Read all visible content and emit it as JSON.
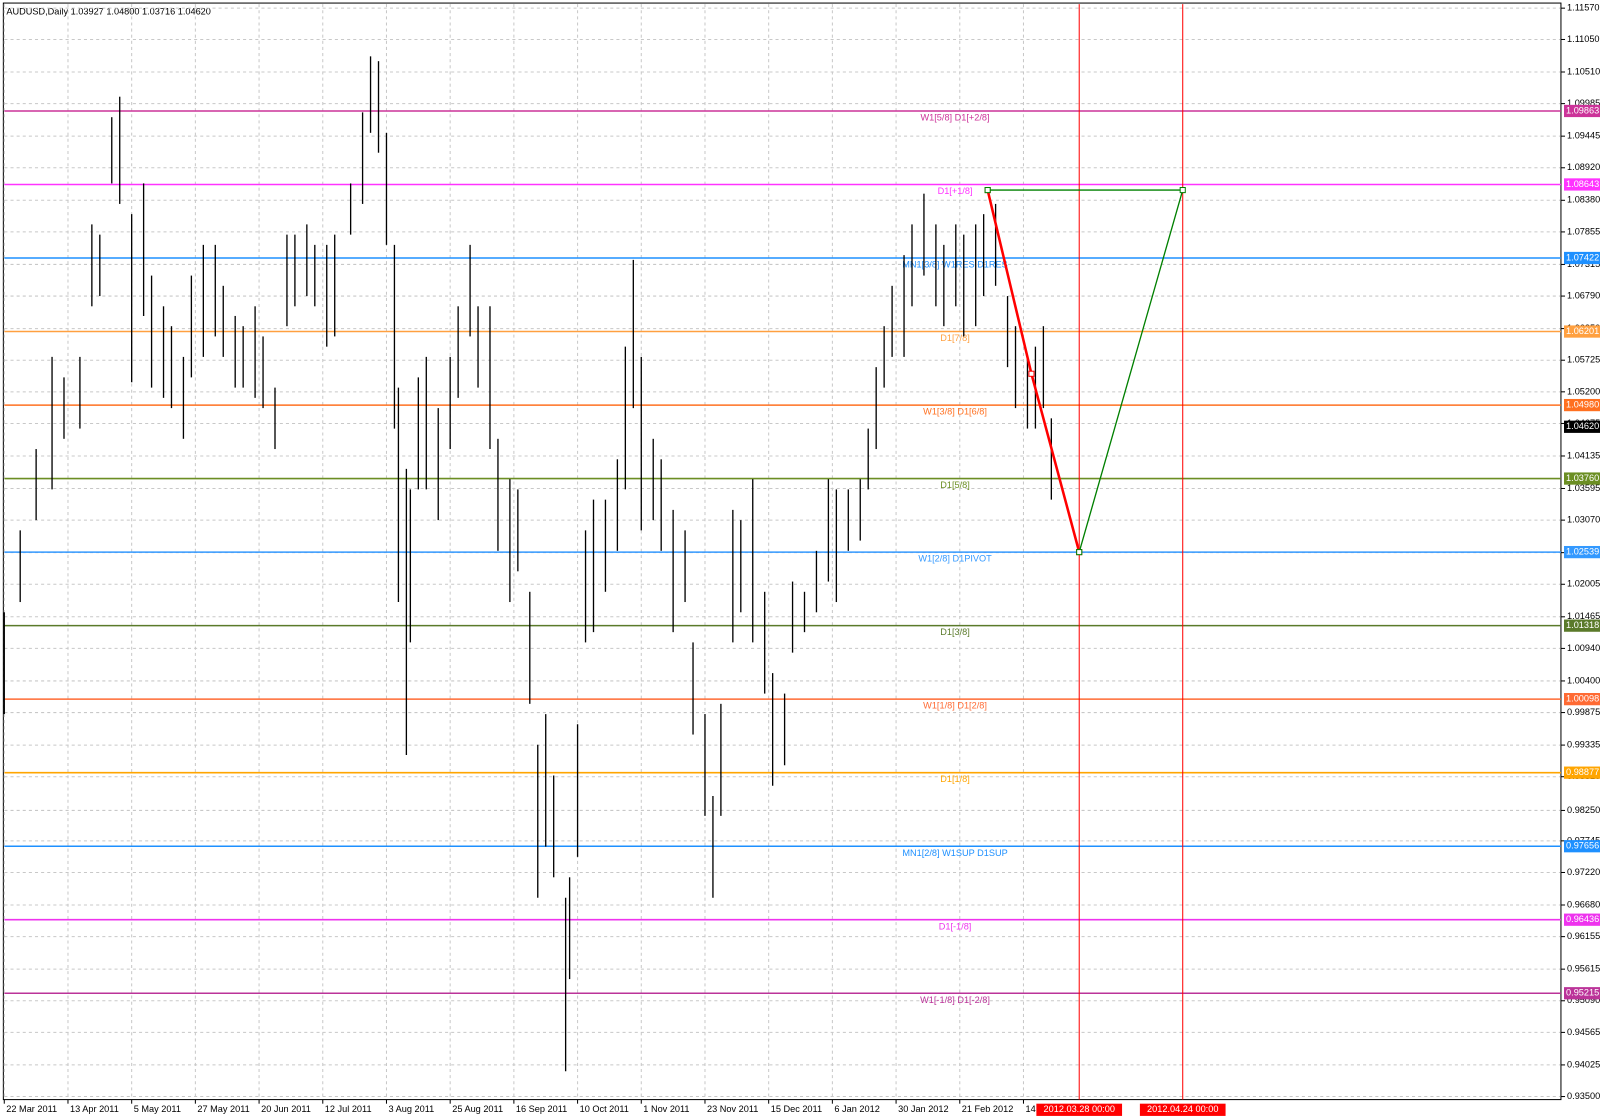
{
  "chart_data": {
    "type": "ohlc",
    "title": "AUDUSD,Daily  1.03927 1.04800 1.03716 1.04620",
    "bar_color": "#000000",
    "grid": true,
    "xlim": [
      -1,
      391
    ],
    "ylim": [
      0.935,
      1.1157
    ],
    "x": [
      0,
      4,
      8,
      12,
      15,
      19,
      22,
      24,
      27,
      29,
      32,
      35,
      37,
      40,
      42,
      45,
      47,
      50,
      53,
      55,
      58,
      60,
      63,
      65,
      68,
      71,
      73,
      76,
      78,
      81,
      83,
      87,
      90,
      92,
      94,
      96,
      98,
      99,
      101,
      102,
      104,
      106,
      109,
      112,
      114,
      117,
      119,
      122,
      124,
      127,
      129,
      132,
      134,
      136,
      138,
      141,
      142,
      144,
      146,
      148,
      151,
      154,
      156,
      158,
      160,
      163,
      165,
      168,
      171,
      173,
      176,
      178,
      180,
      183,
      185,
      188,
      191,
      193,
      196,
      198,
      201,
      204,
      207,
      209,
      212,
      215,
      217,
      219,
      221,
      223,
      226,
      228,
      231,
      234,
      236,
      239,
      241,
      244,
      246,
      249,
      252,
      254,
      257,
      259,
      261,
      263
    ],
    "high": [
      1.0154,
      1.029,
      1.0425,
      1.0578,
      1.0544,
      1.0578,
      1.0798,
      1.0781,
      1.0976,
      1.101,
      1.0815,
      1.0866,
      1.0713,
      1.0662,
      1.0629,
      1.0578,
      1.0713,
      1.0764,
      1.0764,
      1.0696,
      1.0646,
      1.0629,
      1.0662,
      1.0612,
      1.0527,
      1.0781,
      1.0781,
      1.0798,
      1.0764,
      1.0764,
      1.0781,
      1.0866,
      1.0984,
      1.1077,
      1.1069,
      1.095,
      1.0764,
      1.0527,
      1.0392,
      1.0358,
      1.0544,
      1.0578,
      1.0493,
      1.0578,
      1.0662,
      1.0764,
      1.0662,
      1.0662,
      1.0442,
      1.0375,
      1.0358,
      1.0188,
      0.9934,
      0.9985,
      0.9883,
      0.968,
      0.9714,
      0.9968,
      1.029,
      1.0341,
      1.0341,
      1.0408,
      1.0595,
      1.0739,
      1.0578,
      1.0442,
      1.0408,
      1.0324,
      1.029,
      1.0104,
      0.9985,
      0.9849,
      1.0002,
      1.0324,
      1.0307,
      1.0375,
      1.0188,
      1.0053,
      1.0019,
      1.0205,
      1.0188,
      1.0256,
      1.0375,
      1.0358,
      1.0358,
      1.0375,
      1.0459,
      1.0561,
      1.0629,
      1.0696,
      1.0747,
      1.0798,
      1.0849,
      1.0798,
      1.0764,
      1.0798,
      1.0781,
      1.0798,
      1.0815,
      1.0832,
      1.0679,
      1.0629,
      1.0578,
      1.0595,
      1.0629,
      1.0476
    ],
    "low": [
      0.9985,
      1.0171,
      1.0307,
      1.0358,
      1.0442,
      1.0459,
      1.0662,
      1.0679,
      1.0866,
      1.0832,
      1.0536,
      1.0646,
      1.0527,
      1.051,
      1.0493,
      1.0442,
      1.0544,
      1.0578,
      1.0612,
      1.0578,
      1.0527,
      1.0527,
      1.051,
      1.0493,
      1.0425,
      1.0629,
      1.0662,
      1.0679,
      1.0662,
      1.0595,
      1.0612,
      1.0781,
      1.0832,
      1.095,
      1.0917,
      1.0764,
      1.0459,
      1.0171,
      0.9917,
      1.0104,
      1.0358,
      1.0358,
      1.0307,
      1.0425,
      1.051,
      1.0612,
      1.0527,
      1.0425,
      1.0256,
      1.0171,
      1.0222,
      1.0002,
      0.968,
      0.9765,
      0.9714,
      0.9392,
      0.9545,
      0.9748,
      1.0104,
      1.0121,
      1.0188,
      1.0256,
      1.0358,
      1.0493,
      1.029,
      1.0307,
      1.0256,
      1.0121,
      1.0171,
      0.9951,
      0.9816,
      0.968,
      0.9816,
      1.0104,
      1.0154,
      1.0104,
      1.0019,
      0.9866,
      0.99,
      1.0087,
      1.0121,
      1.0154,
      1.0205,
      1.0171,
      1.0256,
      1.0273,
      1.0358,
      1.0425,
      1.0527,
      1.0578,
      1.0578,
      1.0662,
      1.0713,
      1.0662,
      1.0629,
      1.0662,
      1.0612,
      1.0629,
      1.0679,
      1.0696,
      1.0561,
      1.0493,
      1.0459,
      1.0459,
      1.0493,
      1.0341
    ],
    "yticks": [
      {
        "value": 1.1157,
        "label": "1.11570"
      },
      {
        "value": 1.1105,
        "label": "1.11050"
      },
      {
        "value": 1.1051,
        "label": "1.10510"
      },
      {
        "value": 1.09985,
        "label": "1.09985"
      },
      {
        "value": 1.09445,
        "label": "1.09445"
      },
      {
        "value": 1.0892,
        "label": "1.08920"
      },
      {
        "value": 1.0838,
        "label": "1.08380"
      },
      {
        "value": 1.07855,
        "label": "1.07855"
      },
      {
        "value": 1.07315,
        "label": "1.07315"
      },
      {
        "value": 1.0679,
        "label": "1.06790"
      },
      {
        "value": 1.0625,
        "label": "1.06250"
      },
      {
        "value": 1.05725,
        "label": "1.05725"
      },
      {
        "value": 1.052,
        "label": "1.05200"
      },
      {
        "value": 1.04675,
        "label": "1.04675"
      },
      {
        "value": 1.04135,
        "label": "1.04135"
      },
      {
        "value": 1.03595,
        "label": "1.03595"
      },
      {
        "value": 1.0307,
        "label": "1.03070"
      },
      {
        "value": 1.0253,
        "label": "1.02530"
      },
      {
        "value": 1.02005,
        "label": "1.02005"
      },
      {
        "value": 1.01465,
        "label": "1.01465"
      },
      {
        "value": 1.0094,
        "label": "1.00940"
      },
      {
        "value": 1.004,
        "label": "1.00400"
      },
      {
        "value": 0.99875,
        "label": "0.99875"
      },
      {
        "value": 0.99335,
        "label": "0.99335"
      },
      {
        "value": 0.9881,
        "label": "0.98810"
      },
      {
        "value": 0.9825,
        "label": "0.98250"
      },
      {
        "value": 0.97745,
        "label": "0.97745"
      },
      {
        "value": 0.9722,
        "label": "0.97220"
      },
      {
        "value": 0.9668,
        "label": "0.96680"
      },
      {
        "value": 0.96155,
        "label": "0.96155"
      },
      {
        "value": 0.95615,
        "label": "0.95615"
      },
      {
        "value": 0.9509,
        "label": "0.95090"
      },
      {
        "value": 0.94565,
        "label": "0.94565"
      },
      {
        "value": 0.94025,
        "label": "0.94025"
      },
      {
        "value": 0.935,
        "label": "0.93500"
      }
    ],
    "xticks": [
      {
        "value": 0,
        "label": "22 Mar 2011"
      },
      {
        "value": 16,
        "label": "13 Apr 2011"
      },
      {
        "value": 32,
        "label": "5 May 2011"
      },
      {
        "value": 48,
        "label": "27 May 2011"
      },
      {
        "value": 64,
        "label": "20 Jun 2011"
      },
      {
        "value": 80,
        "label": "12 Jul 2011"
      },
      {
        "value": 96,
        "label": "3 Aug 2011"
      },
      {
        "value": 112,
        "label": "25 Aug 2011"
      },
      {
        "value": 128,
        "label": "16 Sep 2011"
      },
      {
        "value": 144,
        "label": "10 Oct 2011"
      },
      {
        "value": 160,
        "label": "1 Nov 2011"
      },
      {
        "value": 176,
        "label": "23 Nov 2011"
      },
      {
        "value": 192,
        "label": "15 Dec 2011"
      },
      {
        "value": 208,
        "label": "6 Jan 2012"
      },
      {
        "value": 224,
        "label": "30 Jan 2012"
      },
      {
        "value": 240,
        "label": "21 Feb 2012"
      },
      {
        "value": 256,
        "label": "14"
      }
    ],
    "levels": [
      {
        "value": 1.09863,
        "tag": "1.09863",
        "label": "W1[5/8] D1[+2/8]",
        "color": "#cc3399"
      },
      {
        "value": 1.08643,
        "tag": "1.08643",
        "label": "D1[+1/8]",
        "color": "#ff33ff"
      },
      {
        "value": 1.07422,
        "tag": "1.07422",
        "label": "MN1[3/8] W1RES D1RES",
        "color": "#1e90ff"
      },
      {
        "value": 1.06201,
        "tag": "1.06201",
        "label": "D1[7/8]",
        "color": "#ffa040"
      },
      {
        "value": 1.0498,
        "tag": "1.04980",
        "label": "W1[3/8] D1[6/8]",
        "color": "#ff7020"
      },
      {
        "value": 1.0376,
        "tag": "1.03760",
        "label": "D1[5/8]",
        "color": "#6b8e23"
      },
      {
        "value": 1.02539,
        "tag": "1.02539",
        "label": "W1[2/8] D1PIVOT",
        "color": "#3399ff"
      },
      {
        "value": 1.01318,
        "tag": "1.01318",
        "label": "D1[3/8]",
        "color": "#5a7a2a"
      },
      {
        "value": 1.00098,
        "tag": "1.00098",
        "label": "W1[1/8] D1[2/8]",
        "color": "#ff6a33"
      },
      {
        "value": 0.98877,
        "tag": "0.98877",
        "label": "D1[1/8]",
        "color": "#ffa500"
      },
      {
        "value": 0.97656,
        "tag": "0.97656",
        "label": "MN1[2/8] W1SUP D1SUP",
        "color": "#1e90ff"
      },
      {
        "value": 0.96436,
        "tag": "0.96436",
        "label": "D1[-1/8]",
        "color": "#ee33ee"
      },
      {
        "value": 0.95215,
        "tag": "0.95215",
        "label": "W1[-1/8] D1[-2/8]",
        "color": "#bb3399"
      }
    ],
    "last": {
      "value": 1.0462,
      "label": "1.04620"
    },
    "vlines": [
      {
        "x": 270,
        "label": "2012.03.28 00:00"
      },
      {
        "x": 296,
        "label": "2012.04.24 00:00"
      }
    ],
    "vline_color": "#ff0000",
    "drawings": [
      {
        "color": "#ff0000",
        "x": [
          247,
          258,
          270
        ],
        "y": [
          1.0855,
          1.055,
          1.02539
        ]
      },
      {
        "color": "#008000",
        "x": [
          270,
          296,
          247
        ],
        "y": [
          1.02539,
          1.0855,
          1.0855
        ]
      }
    ]
  }
}
